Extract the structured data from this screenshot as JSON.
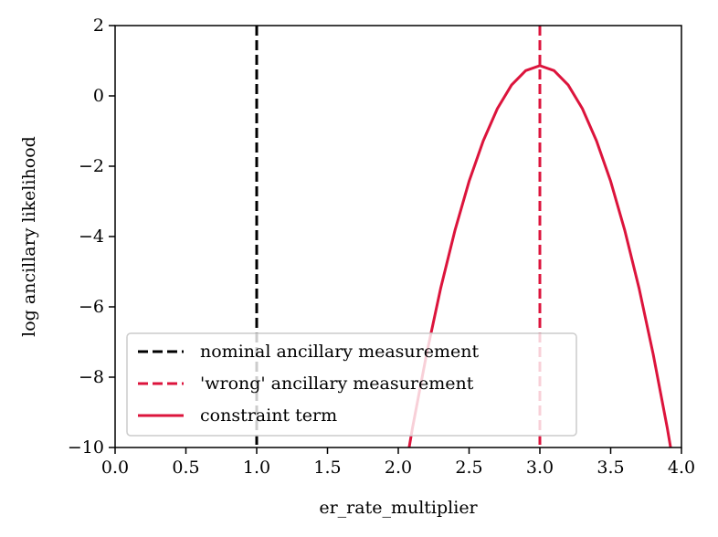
{
  "chart_data": {
    "type": "line",
    "xlabel": "er_rate_multiplier",
    "ylabel": "log ancillary likelihood",
    "xlim": [
      0.0,
      4.0
    ],
    "ylim": [
      -10,
      2
    ],
    "x_ticks": [
      0.0,
      0.5,
      1.0,
      1.5,
      2.0,
      2.5,
      3.0,
      3.5,
      4.0
    ],
    "x_tick_labels": [
      "0.0",
      "0.5",
      "1.0",
      "1.5",
      "2.0",
      "2.5",
      "3.0",
      "3.5",
      "4.0"
    ],
    "y_ticks": [
      2,
      0,
      -2,
      -4,
      -6,
      -8,
      -10
    ],
    "y_tick_labels": [
      "2",
      "0",
      "−2",
      "−4",
      "−6",
      "−8",
      "−10"
    ],
    "grid": false,
    "legend_position": "lower-left",
    "series": [
      {
        "name": "nominal ancillary measurement",
        "kind": "vline",
        "style": "dashed",
        "color": "#000000",
        "x": 1.0
      },
      {
        "name": "'wrong' ancillary measurement",
        "kind": "vline",
        "style": "dashed",
        "color": "#dc143c",
        "x": 3.0
      },
      {
        "name": "constraint term",
        "kind": "curve",
        "style": "solid",
        "color": "#dc143c",
        "x": [
          2.0,
          2.1,
          2.2,
          2.3,
          2.4,
          2.5,
          2.6,
          2.7,
          2.8,
          2.9,
          3.0,
          3.1,
          3.2,
          3.3,
          3.4,
          3.5,
          3.6,
          3.7,
          3.8,
          3.9,
          4.0
        ],
        "y": [
          -11.81,
          -9.45,
          -7.34,
          -5.46,
          -3.83,
          -2.43,
          -1.28,
          -0.36,
          0.31,
          0.72,
          0.86,
          0.72,
          0.31,
          -0.36,
          -1.28,
          -2.43,
          -3.83,
          -5.46,
          -7.34,
          -9.45,
          -11.81
        ]
      }
    ]
  }
}
